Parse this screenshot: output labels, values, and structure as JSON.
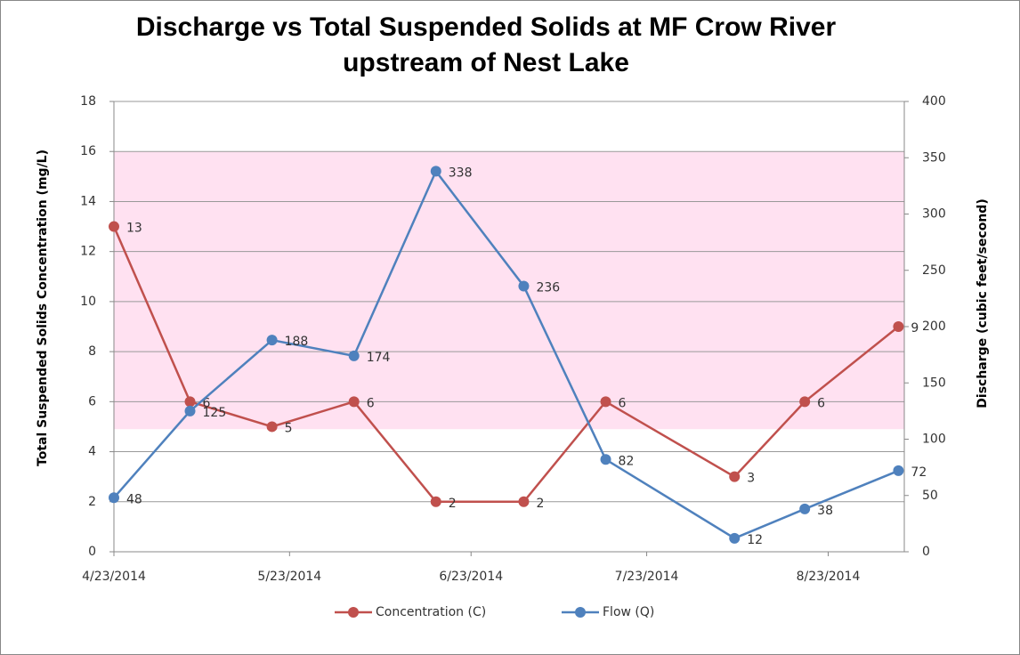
{
  "chart_data": {
    "type": "line",
    "title": "Discharge vs Total Suspended Solids at MF Crow River upstream of Nest Lake",
    "y_label": "Total Suspended Solids  Concentration (mg/L)",
    "y2_label": "Discharge (cubic feet/second)",
    "x": [
      "2014-04-23",
      "2014-05-06",
      "2014-05-20",
      "2014-06-03",
      "2014-06-17",
      "2014-07-02",
      "2014-07-16",
      "2014-08-07",
      "2014-08-19",
      "2014-09-04"
    ],
    "xlim": [
      "2014-04-23",
      "2014-09-05"
    ],
    "xticks": [
      {
        "value": "2014-04-23",
        "label": "4/23/2014"
      },
      {
        "value": "2014-05-23",
        "label": "5/23/2014"
      },
      {
        "value": "2014-06-23",
        "label": "6/23/2014"
      },
      {
        "value": "2014-07-23",
        "label": "7/23/2014"
      },
      {
        "value": "2014-08-23",
        "label": "8/23/2014"
      }
    ],
    "ylim": [
      0,
      18
    ],
    "yticks": [
      0,
      2,
      4,
      6,
      8,
      10,
      12,
      14,
      16,
      18
    ],
    "y2lim": [
      0,
      400
    ],
    "y2ticks": [
      0,
      50,
      100,
      150,
      200,
      250,
      300,
      350,
      400
    ],
    "grid": true,
    "band": {
      "from": 4.9,
      "to": 16,
      "color": "#ffe1f1"
    },
    "legend": "bottom",
    "series": [
      {
        "name": "Concentration (C)",
        "color": "#c0504d",
        "values": [
          13,
          6,
          5,
          6,
          2,
          2,
          6,
          3,
          6,
          9
        ]
      },
      {
        "name": "Flow (Q)",
        "color": "#4f81bd",
        "axis": "y2",
        "values": [
          48,
          125,
          188,
          174,
          338,
          236,
          82,
          12,
          38,
          72
        ]
      }
    ]
  }
}
